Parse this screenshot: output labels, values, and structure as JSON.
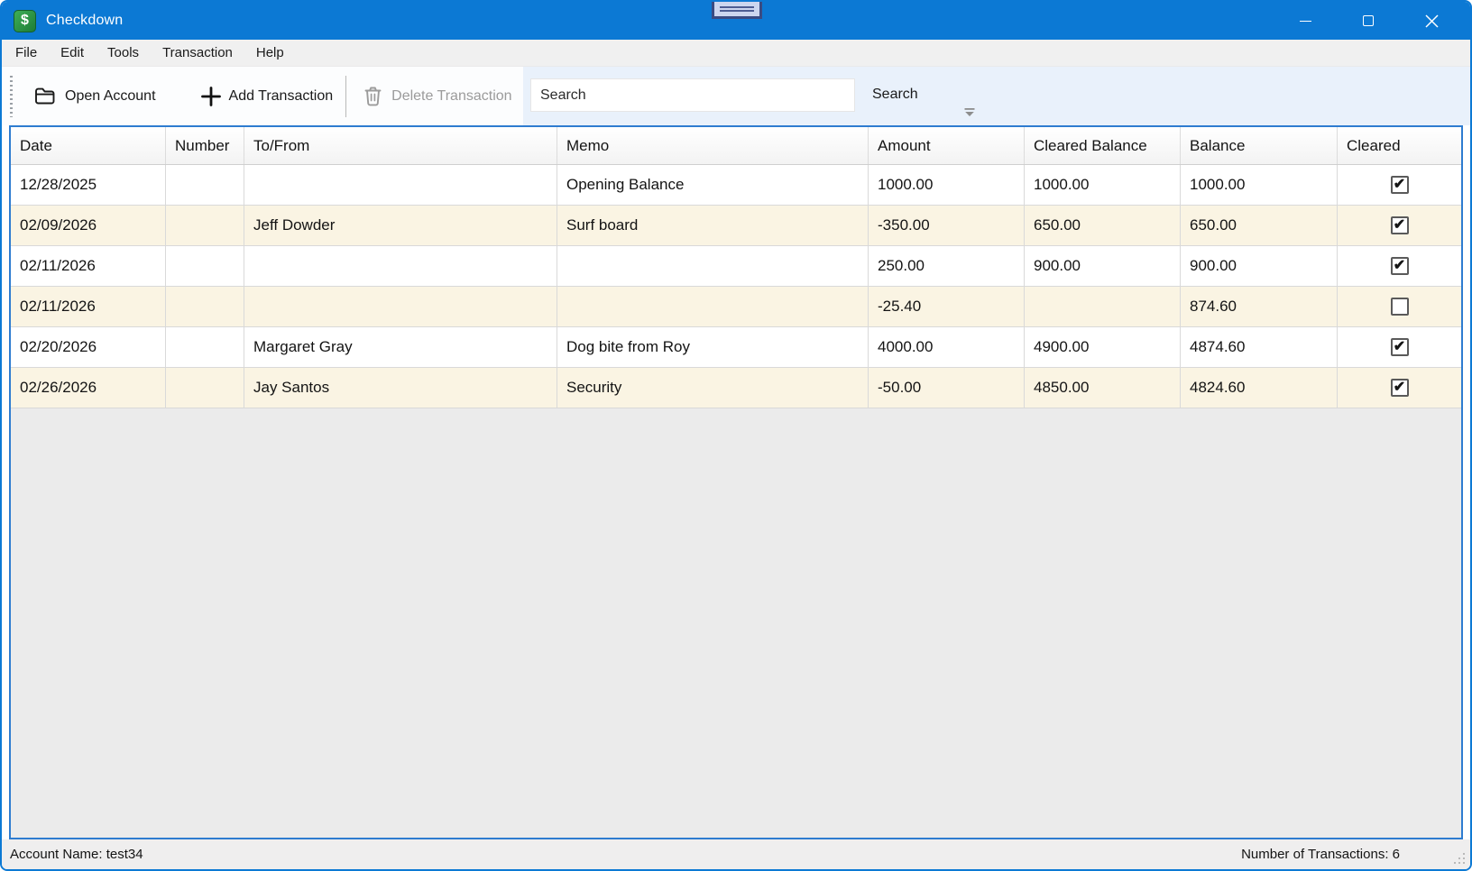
{
  "window": {
    "title": "Checkdown",
    "controls": {
      "minimize": "minimize",
      "maximize": "maximize",
      "close": "close"
    }
  },
  "menu": {
    "items": [
      "File",
      "Edit",
      "Tools",
      "Transaction",
      "Help"
    ]
  },
  "toolbar": {
    "open_account_label": "Open Account",
    "add_transaction_label": "Add Transaction",
    "delete_transaction_label": "Delete Transaction",
    "search_placeholder": "Search",
    "search_label": "Search"
  },
  "table": {
    "columns": [
      "Date",
      "Number",
      "To/From",
      "Memo",
      "Amount",
      "Cleared Balance",
      "Balance",
      "Cleared"
    ],
    "rows": [
      {
        "date": "12/28/2025",
        "number": "",
        "to_from": "",
        "memo": "Opening Balance",
        "amount": "1000.00",
        "amount_color": "green",
        "cleared_balance": "1000.00",
        "balance": "1000.00",
        "cleared": true
      },
      {
        "date": "02/09/2026",
        "number": "",
        "to_from": "Jeff Dowder",
        "memo": "Surf board",
        "amount": "-350.00",
        "amount_color": "red",
        "cleared_balance": "650.00",
        "balance": "650.00",
        "cleared": true
      },
      {
        "date": "02/11/2026",
        "number": "",
        "to_from": "",
        "memo": "",
        "amount": "250.00",
        "amount_color": "green",
        "cleared_balance": "900.00",
        "balance": "900.00",
        "cleared": true
      },
      {
        "date": "02/11/2026",
        "number": "",
        "to_from": "",
        "memo": "",
        "amount": "-25.40",
        "amount_color": "red",
        "cleared_balance": "",
        "balance": "874.60",
        "cleared": false
      },
      {
        "date": "02/20/2026",
        "number": "",
        "to_from": "Margaret Gray",
        "memo": "Dog bite from Roy",
        "amount": "4000.00",
        "amount_color": "green",
        "cleared_balance": "4900.00",
        "balance": "4874.60",
        "cleared": true
      },
      {
        "date": "02/26/2026",
        "number": "",
        "to_from": "Jay Santos",
        "memo": "Security",
        "amount": "-50.00",
        "amount_color": "red",
        "cleared_balance": "4850.00",
        "balance": "4824.60",
        "cleared": true
      }
    ]
  },
  "statusbar": {
    "account_name": "Account Name: test34",
    "transaction_count": "Number of Transactions: 6"
  },
  "colors": {
    "titlebar_accent": "#0c79d4",
    "content_border": "#2e7cd0",
    "row_alt": "#faf4e3",
    "amount_positive": "#1e9e1e",
    "amount_negative": "#e0182d",
    "app_icon_green": "#1d7c35"
  }
}
